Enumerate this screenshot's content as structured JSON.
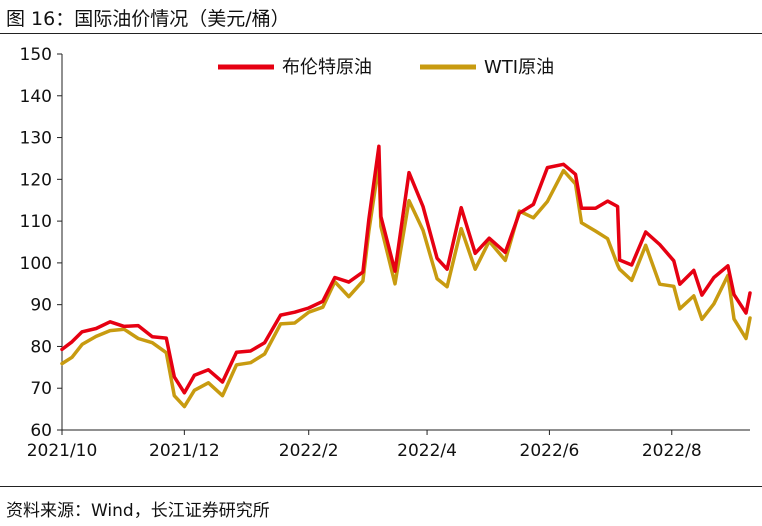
{
  "figure": {
    "title": "图 16：国际油价情况（美元/桶）",
    "source": "资料来源：Wind，长江证券研究所"
  },
  "colors": {
    "brent": "#e60012",
    "wti": "#c89b10",
    "axis": "#222222"
  },
  "chart_data": {
    "type": "line",
    "title": "",
    "xlabel": "",
    "ylabel": "",
    "ylim": [
      60,
      150
    ],
    "yticks": [
      60,
      70,
      80,
      90,
      100,
      110,
      120,
      130,
      140,
      150
    ],
    "xlim": [
      "2021-10-01",
      "2022-09-09"
    ],
    "xtick_labels": [
      {
        "date": "2021-10-01",
        "label": "2021/10"
      },
      {
        "date": "2021-12-01",
        "label": "2021/12"
      },
      {
        "date": "2022-02-01",
        "label": "2022/2"
      },
      {
        "date": "2022-04-01",
        "label": "2022/4"
      },
      {
        "date": "2022-06-01",
        "label": "2022/6"
      },
      {
        "date": "2022-08-01",
        "label": "2022/8"
      }
    ],
    "grid": false,
    "legend": "top-center",
    "series": [
      {
        "name": "布伦特原油",
        "points": [
          [
            "2021-10-01",
            79.3
          ],
          [
            "2021-10-06",
            81.1
          ],
          [
            "2021-10-11",
            83.5
          ],
          [
            "2021-10-18",
            84.3
          ],
          [
            "2021-10-25",
            85.9
          ],
          [
            "2021-11-01",
            84.8
          ],
          [
            "2021-11-08",
            85.0
          ],
          [
            "2021-11-15",
            82.3
          ],
          [
            "2021-11-22",
            82.0
          ],
          [
            "2021-11-26",
            72.7
          ],
          [
            "2021-12-01",
            68.9
          ],
          [
            "2021-12-06",
            73.1
          ],
          [
            "2021-12-13",
            74.4
          ],
          [
            "2021-12-20",
            71.5
          ],
          [
            "2021-12-27",
            78.6
          ],
          [
            "2022-01-03",
            78.9
          ],
          [
            "2022-01-10",
            80.9
          ],
          [
            "2022-01-18",
            87.5
          ],
          [
            "2022-01-25",
            88.2
          ],
          [
            "2022-02-01",
            89.2
          ],
          [
            "2022-02-08",
            90.8
          ],
          [
            "2022-02-14",
            96.5
          ],
          [
            "2022-02-21",
            95.4
          ],
          [
            "2022-02-28",
            97.8
          ],
          [
            "2022-03-03",
            110.5
          ],
          [
            "2022-03-08",
            127.9
          ],
          [
            "2022-03-09",
            111.1
          ],
          [
            "2022-03-16",
            98.0
          ],
          [
            "2022-03-23",
            121.6
          ],
          [
            "2022-03-30",
            113.5
          ],
          [
            "2022-04-06",
            101.1
          ],
          [
            "2022-04-11",
            98.5
          ],
          [
            "2022-04-18",
            113.2
          ],
          [
            "2022-04-25",
            102.3
          ],
          [
            "2022-05-02",
            105.9
          ],
          [
            "2022-05-10",
            102.5
          ],
          [
            "2022-05-17",
            111.9
          ],
          [
            "2022-05-24",
            114.0
          ],
          [
            "2022-05-31",
            122.8
          ],
          [
            "2022-06-08",
            123.6
          ],
          [
            "2022-06-14",
            121.2
          ],
          [
            "2022-06-17",
            113.1
          ],
          [
            "2022-06-24",
            113.1
          ],
          [
            "2022-06-30",
            114.8
          ],
          [
            "2022-07-05",
            113.5
          ],
          [
            "2022-07-06",
            100.7
          ],
          [
            "2022-07-12",
            99.5
          ],
          [
            "2022-07-19",
            107.4
          ],
          [
            "2022-07-26",
            104.4
          ],
          [
            "2022-08-02",
            100.5
          ],
          [
            "2022-08-05",
            94.9
          ],
          [
            "2022-08-12",
            98.2
          ],
          [
            "2022-08-16",
            92.3
          ],
          [
            "2022-08-22",
            96.5
          ],
          [
            "2022-08-29",
            99.3
          ],
          [
            "2022-09-01",
            92.4
          ],
          [
            "2022-09-07",
            88.0
          ],
          [
            "2022-09-09",
            92.8
          ]
        ]
      },
      {
        "name": "WTI原油",
        "points": [
          [
            "2021-10-01",
            75.9
          ],
          [
            "2021-10-06",
            77.4
          ],
          [
            "2021-10-11",
            80.5
          ],
          [
            "2021-10-18",
            82.4
          ],
          [
            "2021-10-25",
            83.8
          ],
          [
            "2021-11-01",
            84.1
          ],
          [
            "2021-11-08",
            81.9
          ],
          [
            "2021-11-15",
            80.9
          ],
          [
            "2021-11-22",
            78.5
          ],
          [
            "2021-11-26",
            68.2
          ],
          [
            "2021-12-01",
            65.6
          ],
          [
            "2021-12-06",
            69.5
          ],
          [
            "2021-12-13",
            71.3
          ],
          [
            "2021-12-20",
            68.2
          ],
          [
            "2021-12-27",
            75.6
          ],
          [
            "2022-01-03",
            76.1
          ],
          [
            "2022-01-10",
            78.2
          ],
          [
            "2022-01-18",
            85.4
          ],
          [
            "2022-01-25",
            85.6
          ],
          [
            "2022-02-01",
            88.2
          ],
          [
            "2022-02-08",
            89.4
          ],
          [
            "2022-02-14",
            95.5
          ],
          [
            "2022-02-21",
            91.9
          ],
          [
            "2022-02-28",
            95.7
          ],
          [
            "2022-03-03",
            107.7
          ],
          [
            "2022-03-08",
            123.7
          ],
          [
            "2022-03-09",
            108.7
          ],
          [
            "2022-03-16",
            95.0
          ],
          [
            "2022-03-23",
            114.9
          ],
          [
            "2022-03-30",
            107.8
          ],
          [
            "2022-04-06",
            96.2
          ],
          [
            "2022-04-11",
            94.3
          ],
          [
            "2022-04-18",
            108.2
          ],
          [
            "2022-04-25",
            98.5
          ],
          [
            "2022-05-02",
            105.2
          ],
          [
            "2022-05-10",
            100.6
          ],
          [
            "2022-05-17",
            112.4
          ],
          [
            "2022-05-24",
            110.8
          ],
          [
            "2022-05-31",
            114.7
          ],
          [
            "2022-06-08",
            122.1
          ],
          [
            "2022-06-14",
            118.9
          ],
          [
            "2022-06-17",
            109.6
          ],
          [
            "2022-06-24",
            107.6
          ],
          [
            "2022-06-30",
            105.8
          ],
          [
            "2022-07-05",
            99.5
          ],
          [
            "2022-07-06",
            98.5
          ],
          [
            "2022-07-12",
            95.8
          ],
          [
            "2022-07-19",
            104.2
          ],
          [
            "2022-07-26",
            94.9
          ],
          [
            "2022-08-02",
            94.4
          ],
          [
            "2022-08-05",
            89.0
          ],
          [
            "2022-08-12",
            92.1
          ],
          [
            "2022-08-16",
            86.5
          ],
          [
            "2022-08-22",
            90.2
          ],
          [
            "2022-08-29",
            97.0
          ],
          [
            "2022-09-01",
            86.6
          ],
          [
            "2022-09-07",
            81.9
          ],
          [
            "2022-09-09",
            86.8
          ]
        ]
      }
    ]
  }
}
